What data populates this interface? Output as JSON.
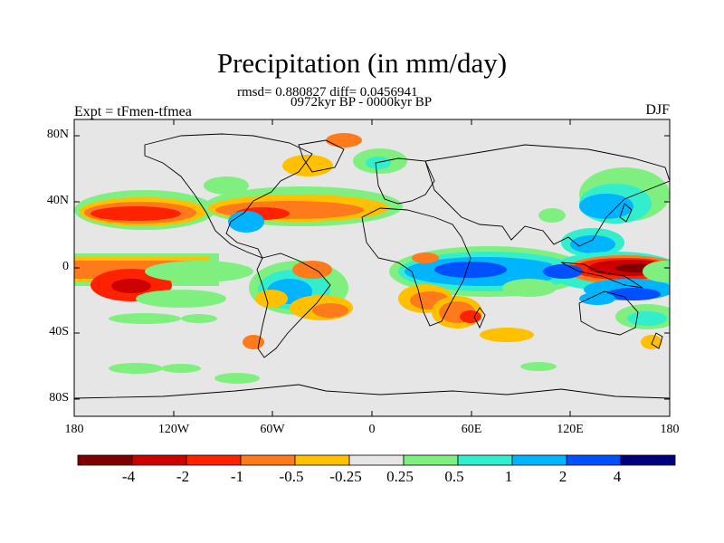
{
  "title": "Precipitation (in mm/day)",
  "stats_line": "rmsd= 0.880827 diff= 0.0456941",
  "period_line": "0972kyr BP - 0000kyr BP",
  "experiment_label": "Expt = tFmen-tfmea",
  "season_label": "DJF",
  "lat_ticks": [
    "80N",
    "40N",
    "0",
    "40S",
    "80S"
  ],
  "lon_ticks": [
    "180",
    "120W",
    "60W",
    "0",
    "60E",
    "120E",
    "180"
  ],
  "colorbar": {
    "colors": [
      "#7f0000",
      "#cc0000",
      "#ff2200",
      "#ff7a1a",
      "#ffc000",
      "#e6e6e6",
      "#7ff07f",
      "#33eecc",
      "#00b4ff",
      "#0050ff",
      "#00007f"
    ],
    "labels": [
      "-4",
      "-2",
      "-1",
      "-0.5",
      "-0.25",
      "0.25",
      "0.5",
      "1",
      "2",
      "4"
    ]
  },
  "colors": {
    "background_field": "#e6e6e6",
    "coast": "#000000"
  }
}
